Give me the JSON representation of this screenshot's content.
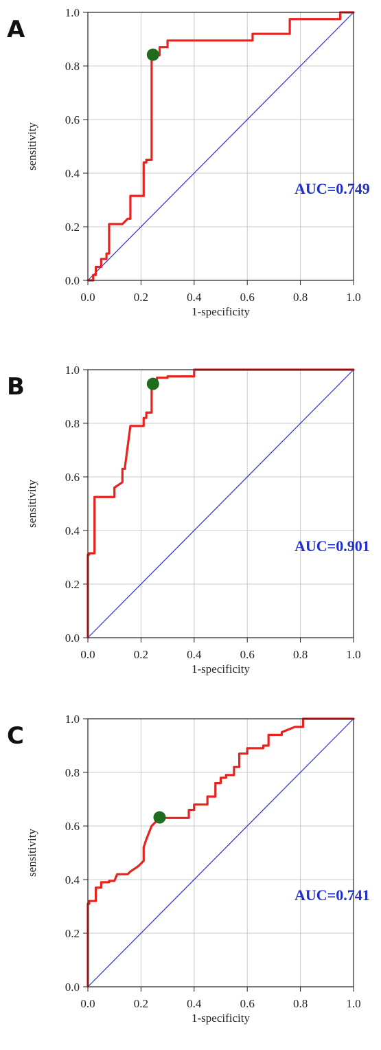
{
  "chart_data": [
    {
      "type": "line",
      "panel_label": "A",
      "xlabel": "1-specificity",
      "ylabel": "sensitivity",
      "xlim": [
        0,
        1
      ],
      "ylim": [
        0,
        1
      ],
      "xticks": [
        "0.0",
        "0.2",
        "0.4",
        "0.6",
        "0.8",
        "1.0"
      ],
      "yticks": [
        "0.0",
        "0.2",
        "0.4",
        "0.6",
        "0.8",
        "1.0"
      ],
      "grid": true,
      "annotation": "AUC=0.749",
      "roc_color": "#e8231e",
      "reference_color": "#2b2bd6",
      "optimal_point_color": "#1f6b1f",
      "optimal_point": [
        0.245,
        0.842
      ],
      "series": [
        {
          "x": [
            0,
            0.02,
            0.02,
            0.03,
            0.03,
            0.05,
            0.05,
            0.07,
            0.07,
            0.08,
            0.08,
            0.13,
            0.15,
            0.16,
            0.16,
            0.21,
            0.21,
            0.22,
            0.22,
            0.24,
            0.24,
            0.27,
            0.27,
            0.3,
            0.3,
            0.62,
            0.62,
            0.76,
            0.76,
            0.95,
            0.95,
            1.0
          ],
          "y": [
            0,
            0,
            0.02,
            0.02,
            0.05,
            0.05,
            0.08,
            0.08,
            0.1,
            0.1,
            0.21,
            0.21,
            0.23,
            0.23,
            0.315,
            0.315,
            0.44,
            0.44,
            0.45,
            0.45,
            0.84,
            0.84,
            0.87,
            0.87,
            0.895,
            0.895,
            0.92,
            0.92,
            0.975,
            0.975,
            1.0,
            1.0
          ]
        },
        {
          "x": [
            0,
            1
          ],
          "y": [
            0,
            1
          ]
        }
      ]
    },
    {
      "type": "line",
      "panel_label": "B",
      "xlabel": "1-specificity",
      "ylabel": "sensitivity",
      "xlim": [
        0,
        1
      ],
      "ylim": [
        0,
        1
      ],
      "xticks": [
        "0.0",
        "0.2",
        "0.4",
        "0.6",
        "0.8",
        "1.0"
      ],
      "yticks": [
        "0.0",
        "0.2",
        "0.4",
        "0.6",
        "0.8",
        "1.0"
      ],
      "grid": true,
      "annotation": "AUC=0.901",
      "roc_color": "#e8231e",
      "reference_color": "#2b2bd6",
      "optimal_point_color": "#1f6b1f",
      "optimal_point": [
        0.245,
        0.947
      ],
      "series": [
        {
          "x": [
            0,
            0,
            0.005,
            0.005,
            0.025,
            0.025,
            0.1,
            0.1,
            0.13,
            0.13,
            0.14,
            0.14,
            0.16,
            0.16,
            0.21,
            0.21,
            0.22,
            0.22,
            0.24,
            0.24,
            0.26,
            0.26,
            0.3,
            0.3,
            0.4,
            0.4,
            1.0
          ],
          "y": [
            0,
            0.31,
            0.31,
            0.315,
            0.315,
            0.525,
            0.525,
            0.56,
            0.58,
            0.63,
            0.63,
            0.64,
            0.79,
            0.79,
            0.79,
            0.82,
            0.82,
            0.84,
            0.84,
            0.95,
            0.95,
            0.97,
            0.97,
            0.975,
            0.975,
            1.0,
            1.0
          ]
        },
        {
          "x": [
            0,
            1
          ],
          "y": [
            0,
            1
          ]
        }
      ]
    },
    {
      "type": "line",
      "panel_label": "C",
      "xlabel": "1-specificity",
      "ylabel": "sensitivity",
      "xlim": [
        0,
        1
      ],
      "ylim": [
        0,
        1
      ],
      "xticks": [
        "0.0",
        "0.2",
        "0.4",
        "0.6",
        "0.8",
        "1.0"
      ],
      "yticks": [
        "0.0",
        "0.2",
        "0.4",
        "0.6",
        "0.8",
        "1.0"
      ],
      "grid": true,
      "annotation": "AUC=0.741",
      "roc_color": "#e8231e",
      "reference_color": "#2b2bd6",
      "optimal_point_color": "#1f6b1f",
      "optimal_point": [
        0.27,
        0.632
      ],
      "series": [
        {
          "x": [
            0,
            0,
            0.005,
            0.005,
            0.03,
            0.03,
            0.05,
            0.05,
            0.08,
            0.08,
            0.1,
            0.11,
            0.15,
            0.16,
            0.16,
            0.19,
            0.19,
            0.21,
            0.21,
            0.22,
            0.24,
            0.27,
            0.3,
            0.32,
            0.38,
            0.38,
            0.4,
            0.4,
            0.45,
            0.45,
            0.48,
            0.48,
            0.5,
            0.5,
            0.52,
            0.52,
            0.55,
            0.55,
            0.57,
            0.57,
            0.6,
            0.6,
            0.66,
            0.66,
            0.68,
            0.68,
            0.73,
            0.73,
            0.78,
            0.81,
            0.81,
            1.0
          ],
          "y": [
            0,
            0.31,
            0.31,
            0.32,
            0.32,
            0.37,
            0.37,
            0.39,
            0.39,
            0.395,
            0.395,
            0.42,
            0.42,
            0.43,
            0.43,
            0.45,
            0.45,
            0.47,
            0.52,
            0.55,
            0.6,
            0.63,
            0.63,
            0.63,
            0.63,
            0.66,
            0.66,
            0.68,
            0.68,
            0.71,
            0.71,
            0.76,
            0.76,
            0.78,
            0.78,
            0.79,
            0.79,
            0.82,
            0.82,
            0.87,
            0.87,
            0.89,
            0.89,
            0.9,
            0.9,
            0.94,
            0.94,
            0.95,
            0.97,
            0.97,
            1.0,
            1.0
          ]
        },
        {
          "x": [
            0,
            1
          ],
          "y": [
            0,
            1
          ]
        }
      ]
    }
  ]
}
